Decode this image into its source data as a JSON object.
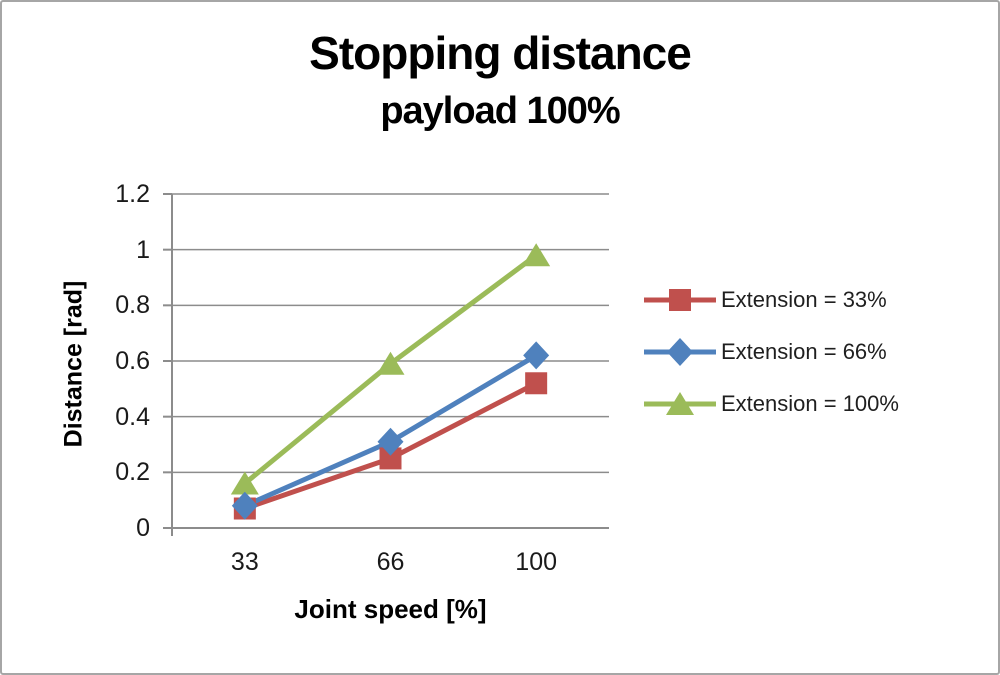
{
  "title": {
    "text": "Stopping distance",
    "subtitle": "payload 100%"
  },
  "chart_data": {
    "type": "line",
    "title": "Stopping distance",
    "subtitle": "payload 100%",
    "xlabel": "Joint speed [%]",
    "ylabel": "Distance [rad]",
    "categories": [
      "33",
      "66",
      "100"
    ],
    "ylim": [
      0,
      1.2
    ],
    "yticks": [
      "0",
      "0.2",
      "0.4",
      "0.6",
      "0.8",
      "1",
      "1.2"
    ],
    "grid": true,
    "legend_position": "right",
    "colors": {
      "gridline": "#8c8c8c",
      "axis": "#8c8c8c",
      "text": "#1a1a1a",
      "frame_border": "#a6a6a6",
      "background": "#ffffff"
    },
    "series": [
      {
        "name": "Extension = 33%",
        "color": "#C0504D",
        "marker": "square",
        "values": [
          0.07,
          0.25,
          0.52
        ]
      },
      {
        "name": "Extension = 66%",
        "color": "#4F81BD",
        "marker": "diamond",
        "values": [
          0.08,
          0.31,
          0.62
        ]
      },
      {
        "name": "Extension = 100%",
        "color": "#9BBB59",
        "marker": "triangle",
        "values": [
          0.16,
          0.59,
          0.98
        ]
      }
    ]
  }
}
